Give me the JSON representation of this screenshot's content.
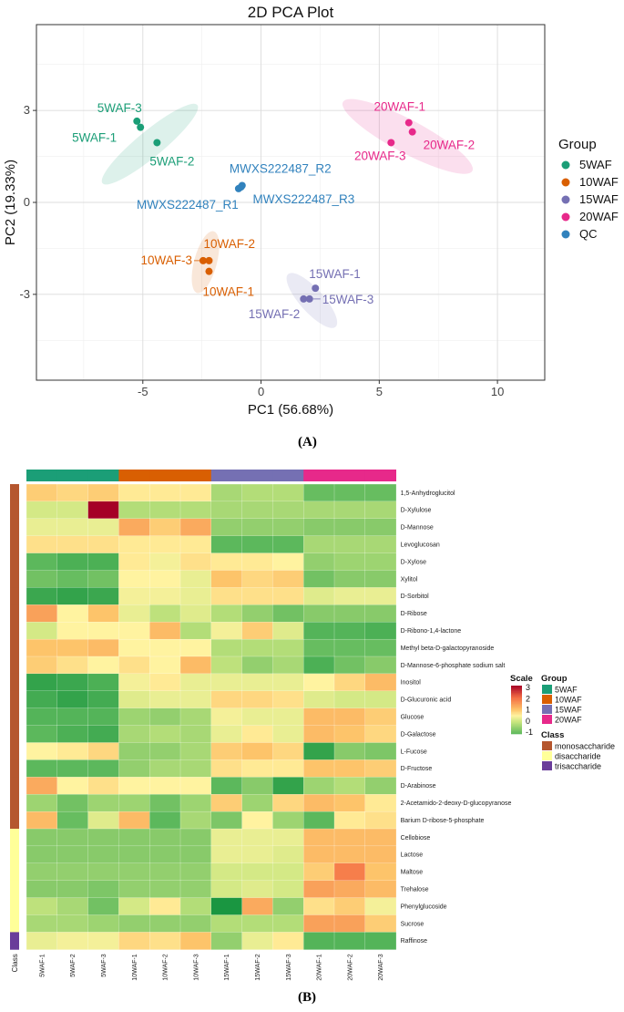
{
  "chart_data": [
    {
      "type": "scatter",
      "title": "2D PCA Plot",
      "xlabel": "PC1 (56.68%)",
      "ylabel": "PC2 (19.33%)",
      "xlim": [
        -9.5,
        12
      ],
      "ylim": [
        -5.8,
        5.8
      ],
      "x_ticks": [
        -5,
        0,
        5,
        10
      ],
      "y_ticks": [
        -3,
        0,
        3
      ],
      "x_tick_labels": [
        "-5",
        "0",
        "5",
        "10"
      ],
      "y_tick_labels": [
        "-3",
        "0",
        "3"
      ],
      "grid": true,
      "legend_title": "Group",
      "legend_position": "right",
      "groups": [
        {
          "name": "5WAF",
          "color": "#1b9e77",
          "ellipse": {
            "cx": -4.7,
            "cy": 1.9,
            "rx": 2.6,
            "ry": 0.55,
            "angle_deg": -39.5
          },
          "points": [
            {
              "label": "5WAF-1",
              "x": -5.1,
              "y": 2.45
            },
            {
              "label": "5WAF-2",
              "x": -4.4,
              "y": 1.95
            },
            {
              "label": "5WAF-3",
              "x": -5.25,
              "y": 2.65
            }
          ]
        },
        {
          "name": "10WAF",
          "color": "#d95f02",
          "ellipse": {
            "cx": -2.35,
            "cy": -1.95,
            "rx": 1.35,
            "ry": 0.48,
            "angle_deg": -75
          },
          "points": [
            {
              "label": "10WAF-1",
              "x": -2.2,
              "y": -2.25
            },
            {
              "label": "10WAF-2",
              "x": -2.2,
              "y": -1.9
            },
            {
              "label": "10WAF-3",
              "x": -2.45,
              "y": -1.9
            }
          ]
        },
        {
          "name": "15WAF",
          "color": "#7570b3",
          "ellipse": {
            "cx": 2.15,
            "cy": -3.2,
            "rx": 1.5,
            "ry": 0.5,
            "angle_deg": 48
          },
          "points": [
            {
              "label": "15WAF-1",
              "x": 2.3,
              "y": -2.8
            },
            {
              "label": "15WAF-2",
              "x": 1.8,
              "y": -3.15
            },
            {
              "label": "15WAF-3",
              "x": 2.05,
              "y": -3.15
            }
          ]
        },
        {
          "name": "20WAF",
          "color": "#e7298a",
          "ellipse": {
            "cx": 6.2,
            "cy": 2.15,
            "rx": 3.1,
            "ry": 0.7,
            "angle_deg": 28
          },
          "points": [
            {
              "label": "20WAF-1",
              "x": 6.25,
              "y": 2.6
            },
            {
              "label": "20WAF-2",
              "x": 6.4,
              "y": 2.3
            },
            {
              "label": "20WAF-3",
              "x": 5.5,
              "y": 1.95
            }
          ]
        },
        {
          "name": "QC",
          "color": "#3182bd",
          "ellipse": null,
          "points": [
            {
              "label": "MWXS222487_R1",
              "x": -0.95,
              "y": 0.45
            },
            {
              "label": "MWXS222487_R2",
              "x": -0.8,
              "y": 0.55
            },
            {
              "label": "MWXS222487_R3",
              "x": -0.85,
              "y": 0.5
            }
          ]
        }
      ]
    },
    {
      "type": "heatmap",
      "columns": [
        "5WAF-1",
        "5WAF-2",
        "5WAF-3",
        "10WAF-1",
        "10WAF-2",
        "10WAF-3",
        "15WAF-1",
        "15WAF-2",
        "15WAF-3",
        "20WAF-1",
        "20WAF-2",
        "20WAF-3"
      ],
      "column_groups": [
        "5WAF",
        "5WAF",
        "5WAF",
        "10WAF",
        "10WAF",
        "10WAF",
        "15WAF",
        "15WAF",
        "15WAF",
        "20WAF",
        "20WAF",
        "20WAF"
      ],
      "group_colors": {
        "5WAF": "#1b9e77",
        "10WAF": "#d95f02",
        "15WAF": "#7570b3",
        "20WAF": "#e7298a"
      },
      "class_colors": {
        "monosaccharide": "#b5562e",
        "disaccharide": "#ffff99",
        "trisaccharide": "#6a3d9a"
      },
      "row_side_label": "Class",
      "rows": [
        {
          "name": "1,5-Anhydroglucitol",
          "class": "monosaccharide",
          "values": [
            0.9,
            0.8,
            0.9,
            0.6,
            0.6,
            0.6,
            -0.3,
            -0.2,
            -0.2,
            -0.9,
            -0.9,
            -0.9
          ]
        },
        {
          "name": "D-Xylulose",
          "class": "monosaccharide",
          "values": [
            0.1,
            0.1,
            3.0,
            -0.2,
            -0.2,
            -0.2,
            -0.3,
            -0.3,
            -0.3,
            -0.3,
            -0.3,
            -0.3
          ]
        },
        {
          "name": "D-Mannose",
          "class": "monosaccharide",
          "values": [
            0.3,
            0.3,
            0.3,
            1.3,
            0.9,
            1.3,
            -0.5,
            -0.5,
            -0.5,
            -0.6,
            -0.6,
            -0.6
          ]
        },
        {
          "name": "Levoglucosan",
          "class": "monosaccharide",
          "values": [
            0.7,
            0.7,
            0.7,
            0.6,
            0.6,
            0.6,
            -1.0,
            -1.0,
            -1.0,
            -0.3,
            -0.3,
            -0.3
          ]
        },
        {
          "name": "D-Xylose",
          "class": "monosaccharide",
          "values": [
            -1.0,
            -1.2,
            -1.2,
            0.6,
            0.4,
            0.7,
            0.6,
            0.6,
            0.5,
            -0.5,
            -0.4,
            -0.4
          ]
        },
        {
          "name": "Xylitol",
          "class": "monosaccharide",
          "values": [
            -0.8,
            -0.9,
            -0.8,
            0.5,
            0.5,
            0.3,
            1.0,
            0.8,
            0.9,
            -0.8,
            -0.6,
            -0.6
          ]
        },
        {
          "name": "D-Sorbitol",
          "class": "monosaccharide",
          "values": [
            -1.4,
            -1.5,
            -1.4,
            0.4,
            0.4,
            0.3,
            0.7,
            0.7,
            0.7,
            0.2,
            0.3,
            0.3
          ]
        },
        {
          "name": "D-Ribose",
          "class": "monosaccharide",
          "values": [
            1.4,
            0.5,
            1.0,
            0.3,
            -0.1,
            0.2,
            -0.2,
            -0.5,
            -0.8,
            -0.6,
            -0.6,
            -0.6
          ]
        },
        {
          "name": "D-Ribono-1,4-lactone",
          "class": "monosaccharide",
          "values": [
            0.1,
            0.5,
            0.5,
            0.5,
            1.1,
            -0.2,
            0.4,
            0.9,
            0.2,
            -1.1,
            -1.1,
            -1.2
          ]
        },
        {
          "name": "Methyl beta-D-galactopyranoside",
          "class": "monosaccharide",
          "values": [
            1.0,
            1.0,
            1.1,
            0.5,
            0.5,
            0.5,
            -0.2,
            -0.2,
            -0.2,
            -0.9,
            -0.9,
            -0.9
          ]
        },
        {
          "name": "D-Mannose-6-phosphate sodium salt",
          "class": "monosaccharide",
          "values": [
            0.9,
            0.7,
            0.5,
            0.7,
            0.5,
            1.1,
            -0.1,
            -0.5,
            -0.3,
            -1.2,
            -0.8,
            -0.6
          ]
        },
        {
          "name": "Inositol",
          "class": "monosaccharide",
          "values": [
            -1.5,
            -1.4,
            -1.2,
            0.4,
            0.6,
            0.3,
            0.3,
            0.3,
            0.3,
            0.5,
            0.8,
            1.1
          ]
        },
        {
          "name": "D-Glucuronic acid",
          "class": "monosaccharide",
          "values": [
            -1.3,
            -1.5,
            -1.3,
            0.2,
            0.3,
            0.3,
            0.8,
            0.8,
            0.7,
            0.2,
            0.1,
            0.1
          ]
        },
        {
          "name": "Glucose",
          "class": "monosaccharide",
          "values": [
            -1.1,
            -1.1,
            -1.1,
            -0.4,
            -0.5,
            -0.3,
            0.4,
            0.3,
            0.3,
            1.1,
            1.1,
            0.9
          ]
        },
        {
          "name": "D-Galactose",
          "class": "monosaccharide",
          "values": [
            -1.0,
            -1.2,
            -1.3,
            -0.3,
            -0.2,
            -0.3,
            0.3,
            0.6,
            0.3,
            1.1,
            1.0,
            0.8
          ]
        },
        {
          "name": "L-Fucose",
          "class": "monosaccharide",
          "values": [
            0.5,
            0.6,
            0.8,
            -0.5,
            -0.5,
            -0.3,
            0.9,
            1.0,
            0.8,
            -1.5,
            -0.6,
            -0.7
          ]
        },
        {
          "name": "D-Fructose",
          "class": "monosaccharide",
          "values": [
            -1.0,
            -1.0,
            -1.0,
            -0.5,
            -0.3,
            -0.3,
            0.7,
            0.6,
            0.6,
            1.0,
            1.0,
            0.9
          ]
        },
        {
          "name": "D-Arabinose",
          "class": "monosaccharide",
          "values": [
            1.3,
            0.5,
            0.7,
            0.5,
            0.5,
            0.5,
            -1.0,
            -0.6,
            -1.5,
            -0.4,
            -0.2,
            -0.5
          ]
        },
        {
          "name": "2-Acetamido-2-deoxy-D-glucopyranose",
          "class": "monosaccharide",
          "values": [
            -0.4,
            -0.8,
            -0.4,
            -0.4,
            -0.8,
            -0.4,
            0.9,
            -0.4,
            0.8,
            1.1,
            1.0,
            0.6
          ]
        },
        {
          "name": "Barium D-ribose-5-phosphate",
          "class": "monosaccharide",
          "values": [
            1.1,
            -0.9,
            0.2,
            1.1,
            -1.0,
            -0.3,
            -0.7,
            0.5,
            -0.4,
            -1.0,
            0.6,
            0.7
          ]
        },
        {
          "name": "Cellobiose",
          "class": "disaccharide",
          "values": [
            -0.6,
            -0.6,
            -0.6,
            -0.6,
            -0.6,
            -0.6,
            0.3,
            0.3,
            0.3,
            1.1,
            1.1,
            1.1
          ]
        },
        {
          "name": "Lactose",
          "class": "disaccharide",
          "values": [
            -0.6,
            -0.6,
            -0.6,
            -0.6,
            -0.6,
            -0.6,
            0.3,
            0.3,
            0.2,
            1.1,
            1.1,
            1.1
          ]
        },
        {
          "name": "Maltose",
          "class": "disaccharide",
          "values": [
            -0.5,
            -0.5,
            -0.5,
            -0.5,
            -0.5,
            -0.5,
            0.1,
            0.1,
            0.1,
            0.9,
            1.8,
            1.0
          ]
        },
        {
          "name": "Trehalose",
          "class": "disaccharide",
          "values": [
            -0.6,
            -0.6,
            -0.7,
            -0.5,
            -0.5,
            -0.5,
            0.1,
            0.2,
            0.1,
            1.4,
            1.3,
            1.1
          ]
        },
        {
          "name": "Phenylglucoside",
          "class": "disaccharide",
          "values": [
            -0.1,
            -0.3,
            -0.8,
            0.1,
            0.6,
            -0.2,
            -1.8,
            1.3,
            -0.5,
            0.7,
            0.9,
            0.4
          ]
        },
        {
          "name": "Sucrose",
          "class": "disaccharide",
          "values": [
            -0.3,
            -0.3,
            -0.4,
            -0.5,
            -0.5,
            -0.5,
            -0.2,
            -0.2,
            -0.2,
            1.4,
            1.4,
            0.9
          ]
        },
        {
          "name": "Raffinose",
          "class": "trisaccharide",
          "values": [
            0.3,
            0.4,
            0.4,
            0.8,
            0.7,
            1.0,
            -0.5,
            0.3,
            0.6,
            -1.1,
            -1.1,
            -1.1
          ]
        }
      ],
      "scale_title": "Scale",
      "scale_range": [
        -1,
        3
      ],
      "scale_ticks": [
        "3",
        "2",
        "1",
        "0",
        "-1"
      ],
      "legend_group_title": "Group",
      "legend_class_title": "Class",
      "legend_groups": [
        "5WAF",
        "10WAF",
        "15WAF",
        "20WAF"
      ],
      "legend_classes": [
        "monosaccharide",
        "disaccharide",
        "trisaccharide"
      ]
    }
  ],
  "captions": {
    "a": "(A)",
    "b": "(B)"
  }
}
